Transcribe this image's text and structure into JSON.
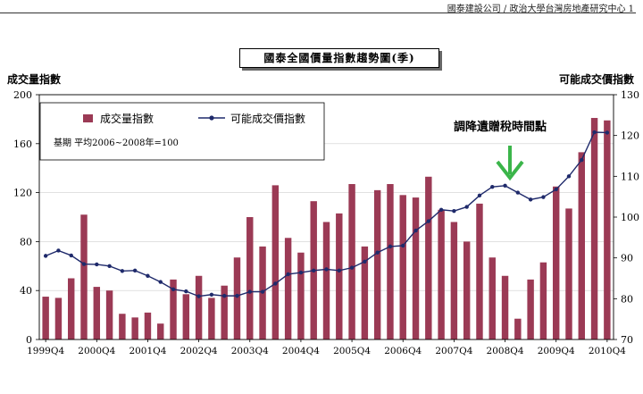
{
  "header": {
    "text": "國泰建設公司 / 政治大學台灣房地產研究中心 1"
  },
  "colors": {
    "bar": "#9b3a55",
    "line": "#1f2a6b",
    "arrow": "#3bb54a"
  },
  "chart_data": {
    "type": "bar+line",
    "title": "國泰全國價量指數趨勢圖(季)",
    "ylabel_left": "成交量指數",
    "ylabel_right": "可能成交價指數",
    "ylim_left": [
      0,
      200
    ],
    "ylim_right": [
      70,
      130
    ],
    "yticks_left": [
      "0",
      "40",
      "80",
      "120",
      "160",
      "200"
    ],
    "yticks_right": [
      "70",
      "80",
      "90",
      "100",
      "110",
      "120",
      "130"
    ],
    "xtick_labels": [
      "1999Q4",
      "2000Q4",
      "2001Q4",
      "2002Q4",
      "2003Q4",
      "2004Q4",
      "2005Q4",
      "2006Q4",
      "2007Q4",
      "2008Q4",
      "2009Q4",
      "2010Q4"
    ],
    "note": "基期 平均2006~2008年=100",
    "annotation": "調降遺贈稅時間點",
    "legend": {
      "placement": "top-left"
    },
    "series": [
      {
        "name": "成交量指數",
        "kind": "bar",
        "axis": "left",
        "values": [
          35,
          34,
          50,
          102,
          43,
          40,
          21,
          18,
          22,
          13,
          49,
          37,
          52,
          34,
          44,
          67,
          100,
          76,
          126,
          83,
          71,
          113,
          96,
          103,
          127,
          76,
          122,
          127,
          118,
          116,
          133,
          106,
          96,
          80,
          111,
          67,
          52,
          17,
          49,
          63,
          125,
          107,
          153,
          181,
          179
        ]
      },
      {
        "name": "可能成交價指數",
        "kind": "line",
        "axis": "right",
        "values": [
          90.5,
          91.8,
          90.6,
          88.5,
          88.4,
          88.0,
          86.8,
          86.9,
          85.6,
          84.1,
          82.3,
          81.8,
          80.6,
          81.0,
          80.7,
          80.7,
          81.7,
          81.7,
          83.7,
          86.0,
          86.4,
          86.9,
          87.2,
          86.9,
          87.6,
          89.1,
          91.3,
          92.8,
          93.0,
          96.7,
          99.0,
          101.8,
          101.5,
          102.5,
          105.3,
          107.4,
          107.7,
          106.0,
          104.3,
          104.9,
          106.8,
          110.0,
          114.0,
          120.8,
          120.7
        ]
      }
    ]
  }
}
